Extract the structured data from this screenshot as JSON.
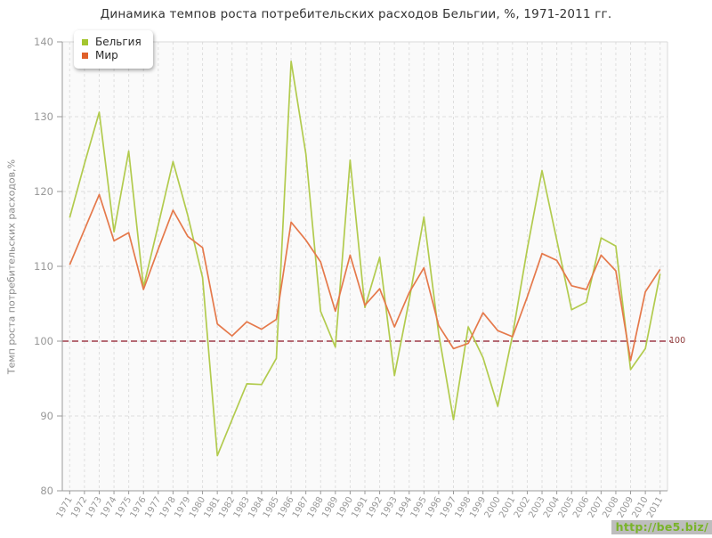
{
  "title": "Динамика темпов роста потребительских расходов Бельгии, %, 1971-2011 гг.",
  "y_axis_title": "Темп роста потребительских расходов,%",
  "legend": {
    "items": [
      {
        "label": "Бельгия",
        "color": "#a4c62f"
      },
      {
        "label": "Мир",
        "color": "#e0602a"
      }
    ]
  },
  "reference_line": {
    "value": 100,
    "label": "100",
    "color": "#9e3a47"
  },
  "watermark": "http://be5.biz/",
  "colors": {
    "belgium_line": "#b2cb4e",
    "world_line": "#e5794b",
    "grid": "#dedede",
    "axis": "#9a9a9a",
    "plot_background": "#fafafa",
    "tick_text": "#999999"
  },
  "chart_data": {
    "type": "line",
    "x": [
      1971,
      1972,
      1973,
      1974,
      1975,
      1976,
      1977,
      1978,
      1979,
      1980,
      1981,
      1982,
      1983,
      1984,
      1985,
      1986,
      1987,
      1988,
      1989,
      1990,
      1991,
      1992,
      1993,
      1994,
      1995,
      1996,
      1997,
      1998,
      1999,
      2000,
      2001,
      2002,
      2003,
      2004,
      2005,
      2006,
      2007,
      2008,
      2009,
      2010,
      2011
    ],
    "series": [
      {
        "name": "Бельгия",
        "color": "#b2cb4e",
        "values": [
          116.5,
          123.7,
          130.6,
          114.6,
          125.4,
          107.2,
          115.5,
          124.0,
          116.8,
          108.5,
          84.7,
          89.5,
          94.3,
          94.2,
          97.7,
          137.4,
          125.0,
          104.0,
          99.2,
          124.2,
          104.5,
          111.2,
          95.4,
          105.5,
          116.6,
          101.0,
          89.5,
          101.9,
          97.8,
          91.3,
          100.8,
          112.3,
          122.8,
          113.5,
          104.2,
          105.2,
          113.8,
          112.7,
          96.2,
          99.0,
          109.0
        ]
      },
      {
        "name": "Мир",
        "color": "#e5794b",
        "values": [
          110.2,
          114.9,
          119.6,
          113.4,
          114.5,
          106.9,
          112.3,
          117.5,
          114.0,
          112.5,
          102.3,
          100.7,
          102.6,
          101.6,
          102.9,
          115.9,
          113.5,
          110.6,
          104.0,
          111.5,
          104.8,
          107.0,
          101.9,
          106.5,
          109.8,
          102.1,
          99.0,
          99.7,
          103.8,
          101.4,
          100.6,
          105.9,
          111.7,
          110.8,
          107.4,
          106.9,
          111.5,
          109.4,
          97.4,
          106.6,
          109.6
        ]
      }
    ],
    "ylim": [
      80,
      140
    ],
    "yticks": [
      80,
      90,
      100,
      110,
      120,
      130,
      140
    ],
    "grid": true,
    "legend_position": "top-left",
    "reference_value": 100
  }
}
